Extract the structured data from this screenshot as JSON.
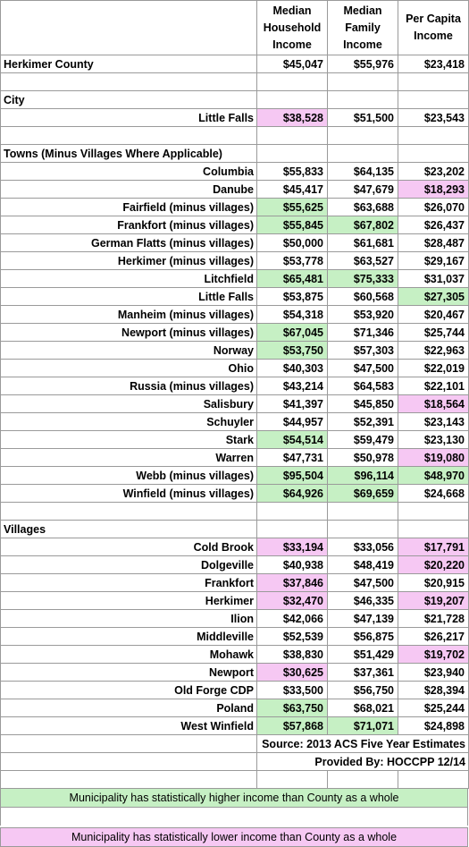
{
  "header": {
    "col1": "Median Household Income",
    "col2": "Median Family Income",
    "col3": "Per Capita Income"
  },
  "county": {
    "name": "Herkimer County",
    "household": "$45,047",
    "family": "$55,976",
    "per_capita": "$23,418"
  },
  "sections": {
    "city": "City",
    "towns": "Towns (Minus Villages Where Applicable)",
    "villages": "Villages"
  },
  "city_rows": [
    {
      "name": "Little Falls",
      "household": "$38,528",
      "family": "$51,500",
      "per_capita": "$23,543",
      "flags": [
        "lo",
        "",
        ""
      ]
    }
  ],
  "town_rows": [
    {
      "name": "Columbia",
      "household": "$55,833",
      "family": "$64,135",
      "per_capita": "$23,202",
      "flags": [
        "",
        "",
        ""
      ]
    },
    {
      "name": "Danube",
      "household": "$45,417",
      "family": "$47,679",
      "per_capita": "$18,293",
      "flags": [
        "",
        "",
        "lo"
      ]
    },
    {
      "name": "Fairfield (minus villages)",
      "household": "$55,625",
      "family": "$63,688",
      "per_capita": "$26,070",
      "flags": [
        "hi",
        "",
        ""
      ]
    },
    {
      "name": "Frankfort (minus villages)",
      "household": "$55,845",
      "family": "$67,802",
      "per_capita": "$26,437",
      "flags": [
        "hi",
        "hi",
        ""
      ]
    },
    {
      "name": "German Flatts (minus villages)",
      "household": "$50,000",
      "family": "$61,681",
      "per_capita": "$28,487",
      "flags": [
        "",
        "",
        ""
      ]
    },
    {
      "name": "Herkimer (minus villages)",
      "household": "$53,778",
      "family": "$63,527",
      "per_capita": "$29,167",
      "flags": [
        "",
        "",
        ""
      ]
    },
    {
      "name": "Litchfield",
      "household": "$65,481",
      "family": "$75,333",
      "per_capita": "$31,037",
      "flags": [
        "hi",
        "hi",
        ""
      ]
    },
    {
      "name": "Little Falls",
      "household": "$53,875",
      "family": "$60,568",
      "per_capita": "$27,305",
      "flags": [
        "",
        "",
        "hi"
      ]
    },
    {
      "name": "Manheim (minus villages)",
      "household": "$54,318",
      "family": "$53,920",
      "per_capita": "$20,467",
      "flags": [
        "",
        "",
        ""
      ]
    },
    {
      "name": "Newport (minus villages)",
      "household": "$67,045",
      "family": "$71,346",
      "per_capita": "$25,744",
      "flags": [
        "hi",
        "",
        ""
      ]
    },
    {
      "name": "Norway",
      "household": "$53,750",
      "family": "$57,303",
      "per_capita": "$22,963",
      "flags": [
        "hi",
        "",
        ""
      ]
    },
    {
      "name": "Ohio",
      "household": "$40,303",
      "family": "$47,500",
      "per_capita": "$22,019",
      "flags": [
        "",
        "",
        ""
      ]
    },
    {
      "name": "Russia (minus villages)",
      "household": "$43,214",
      "family": "$64,583",
      "per_capita": "$22,101",
      "flags": [
        "",
        "",
        ""
      ]
    },
    {
      "name": "Salisbury",
      "household": "$41,397",
      "family": "$45,850",
      "per_capita": "$18,564",
      "flags": [
        "",
        "",
        "lo"
      ]
    },
    {
      "name": "Schuyler",
      "household": "$44,957",
      "family": "$52,391",
      "per_capita": "$23,143",
      "flags": [
        "",
        "",
        ""
      ]
    },
    {
      "name": "Stark",
      "household": "$54,514",
      "family": "$59,479",
      "per_capita": "$23,130",
      "flags": [
        "hi",
        "",
        ""
      ]
    },
    {
      "name": "Warren",
      "household": "$47,731",
      "family": "$50,978",
      "per_capita": "$19,080",
      "flags": [
        "",
        "",
        "lo"
      ]
    },
    {
      "name": "Webb (minus villages)",
      "household": "$95,504",
      "family": "$96,114",
      "per_capita": "$48,970",
      "flags": [
        "hi",
        "hi",
        "hi"
      ]
    },
    {
      "name": "Winfield (minus villages)",
      "household": "$64,926",
      "family": "$69,659",
      "per_capita": "$24,668",
      "flags": [
        "hi",
        "hi",
        ""
      ]
    }
  ],
  "village_rows": [
    {
      "name": "Cold Brook",
      "household": "$33,194",
      "family": "$33,056",
      "per_capita": "$17,791",
      "flags": [
        "lo",
        "",
        "lo"
      ]
    },
    {
      "name": "Dolgeville",
      "household": "$40,938",
      "family": "$48,419",
      "per_capita": "$20,220",
      "flags": [
        "",
        "",
        "lo"
      ]
    },
    {
      "name": "Frankfort",
      "household": "$37,846",
      "family": "$47,500",
      "per_capita": "$20,915",
      "flags": [
        "lo",
        "",
        ""
      ]
    },
    {
      "name": "Herkimer",
      "household": "$32,470",
      "family": "$46,335",
      "per_capita": "$19,207",
      "flags": [
        "lo",
        "",
        "lo"
      ]
    },
    {
      "name": "Ilion",
      "household": "$42,066",
      "family": "$47,139",
      "per_capita": "$21,728",
      "flags": [
        "",
        "",
        ""
      ]
    },
    {
      "name": "Middleville",
      "household": "$52,539",
      "family": "$56,875",
      "per_capita": "$26,217",
      "flags": [
        "",
        "",
        ""
      ]
    },
    {
      "name": "Mohawk",
      "household": "$38,830",
      "family": "$51,429",
      "per_capita": "$19,702",
      "flags": [
        "",
        "",
        "lo"
      ]
    },
    {
      "name": "Newport",
      "household": "$30,625",
      "family": "$37,361",
      "per_capita": "$23,940",
      "flags": [
        "lo",
        "",
        ""
      ]
    },
    {
      "name": "Old Forge CDP",
      "household": "$33,500",
      "family": "$56,750",
      "per_capita": "$28,394",
      "flags": [
        "",
        "",
        ""
      ]
    },
    {
      "name": "Poland",
      "household": "$63,750",
      "family": "$68,021",
      "per_capita": "$25,244",
      "flags": [
        "hi",
        "",
        ""
      ]
    },
    {
      "name": "West Winfield",
      "household": "$57,868",
      "family": "$71,071",
      "per_capita": "$24,898",
      "flags": [
        "hi",
        "hi",
        ""
      ]
    }
  ],
  "notes": {
    "source": "Source: 2013 ACS Five Year Estimates",
    "provided": "Provided By: HOCCPP 12/14"
  },
  "legend": {
    "higher": "Municipality has statistically higher income than County as a whole",
    "lower": "Municipality has statistically lower income than County as a whole"
  },
  "colors": {
    "higher": "#c6f0c4",
    "lower": "#f6c8f3"
  }
}
